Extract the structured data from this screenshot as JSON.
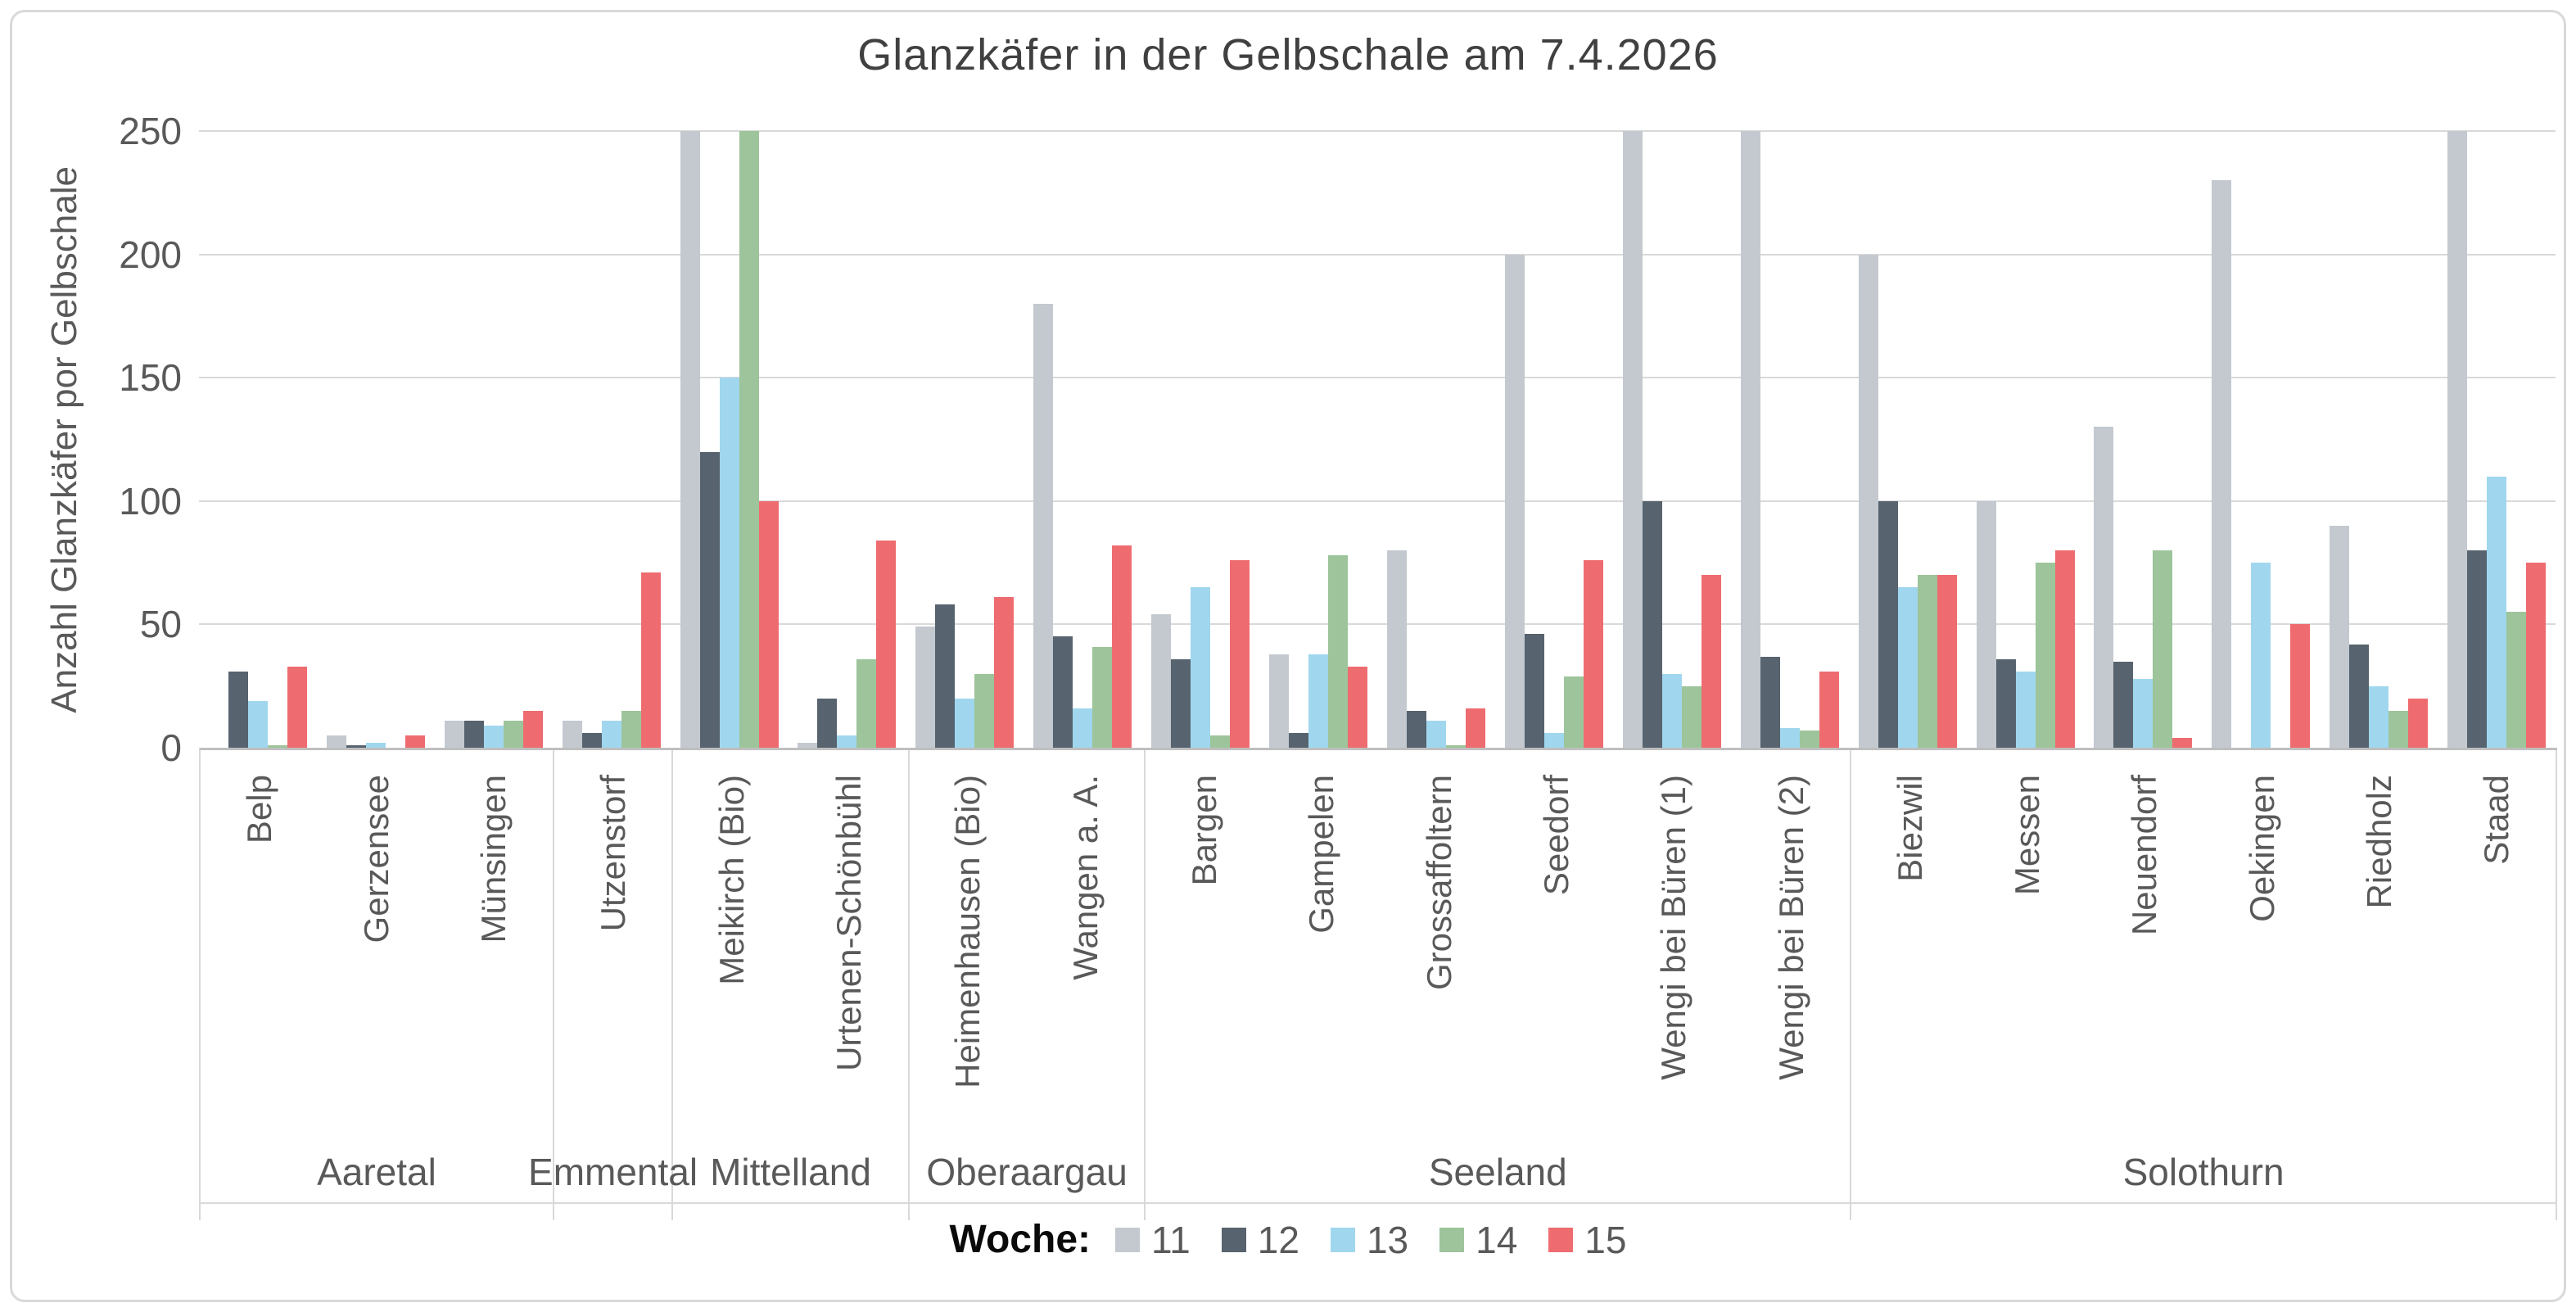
{
  "chart_data": {
    "type": "bar",
    "title": "Glanzkäfer in der Gelbschale am 7.4.2026",
    "ylabel": "Anzahl Glanzkäfer por Gelbschale",
    "ylim": [
      0,
      250
    ],
    "yticks": [
      0,
      50,
      100,
      150,
      200,
      250
    ],
    "grid": true,
    "legend_position": "bottom",
    "legend_title": "Woche:",
    "series": [
      {
        "name": "11",
        "color": "#c3c9cf"
      },
      {
        "name": "12",
        "color": "#57636e"
      },
      {
        "name": "13",
        "color": "#a0d7ee"
      },
      {
        "name": "14",
        "color": "#9dc49a"
      },
      {
        "name": "15",
        "color": "#ee6c70"
      }
    ],
    "note": "values are per location in series order weeks 11-15; axis is capped at 250 so bars at 250 are clipped",
    "groups": [
      {
        "region": "Aaretal",
        "locations": [
          {
            "name": "Belp",
            "values": [
              0,
              31,
              19,
              1,
              33
            ]
          },
          {
            "name": "Gerzensee",
            "values": [
              5,
              1,
              2,
              0,
              5
            ]
          },
          {
            "name": "Münsingen",
            "values": [
              11,
              11,
              9,
              11,
              15
            ]
          }
        ]
      },
      {
        "region": "Emmental",
        "locations": [
          {
            "name": "Utzenstorf",
            "values": [
              11,
              6,
              11,
              15,
              71
            ]
          }
        ]
      },
      {
        "region": "Mittelland",
        "locations": [
          {
            "name": "Meikirch (Bio)",
            "values": [
              250,
              120,
              150,
              250,
              100
            ]
          },
          {
            "name": "Urtenen-Schönbühl",
            "values": [
              2,
              20,
              5,
              36,
              84
            ]
          }
        ]
      },
      {
        "region": "Oberaargau",
        "locations": [
          {
            "name": "Heimenhausen (Bio)",
            "values": [
              49,
              58,
              20,
              30,
              61
            ]
          },
          {
            "name": "Wangen a. A.",
            "values": [
              180,
              45,
              16,
              41,
              82
            ]
          }
        ]
      },
      {
        "region": "Seeland",
        "locations": [
          {
            "name": "Bargen",
            "values": [
              54,
              36,
              65,
              5,
              76
            ]
          },
          {
            "name": "Gampelen",
            "values": [
              38,
              6,
              38,
              78,
              33
            ]
          },
          {
            "name": "Grossaffoltern",
            "values": [
              80,
              15,
              11,
              1,
              16
            ]
          },
          {
            "name": "Seedorf",
            "values": [
              200,
              46,
              6,
              29,
              76
            ]
          },
          {
            "name": "Wengi bei Büren (1)",
            "values": [
              250,
              100,
              30,
              25,
              70
            ]
          },
          {
            "name": "Wengi bei Büren (2)",
            "values": [
              250,
              37,
              8,
              7,
              31
            ]
          }
        ]
      },
      {
        "region": "Solothurn",
        "locations": [
          {
            "name": "Biezwil",
            "values": [
              200,
              100,
              65,
              70,
              70
            ]
          },
          {
            "name": "Messen",
            "values": [
              100,
              36,
              31,
              75,
              80
            ]
          },
          {
            "name": "Neuendorf",
            "values": [
              130,
              35,
              28,
              80,
              4
            ]
          },
          {
            "name": "Oekingen",
            "values": [
              230,
              0,
              75,
              0,
              50
            ]
          },
          {
            "name": "Riedholz",
            "values": [
              90,
              42,
              25,
              15,
              20
            ]
          },
          {
            "name": "Staad",
            "values": [
              250,
              80,
              110,
              55,
              75
            ]
          }
        ]
      }
    ],
    "colors": {
      "gridline": "#d9d9d9",
      "axis_line": "#bfbfbf",
      "axis_text": "#595959",
      "title_text": "#404040",
      "legend_title_text": "#0a0a0a",
      "background": "#ffffff"
    }
  }
}
